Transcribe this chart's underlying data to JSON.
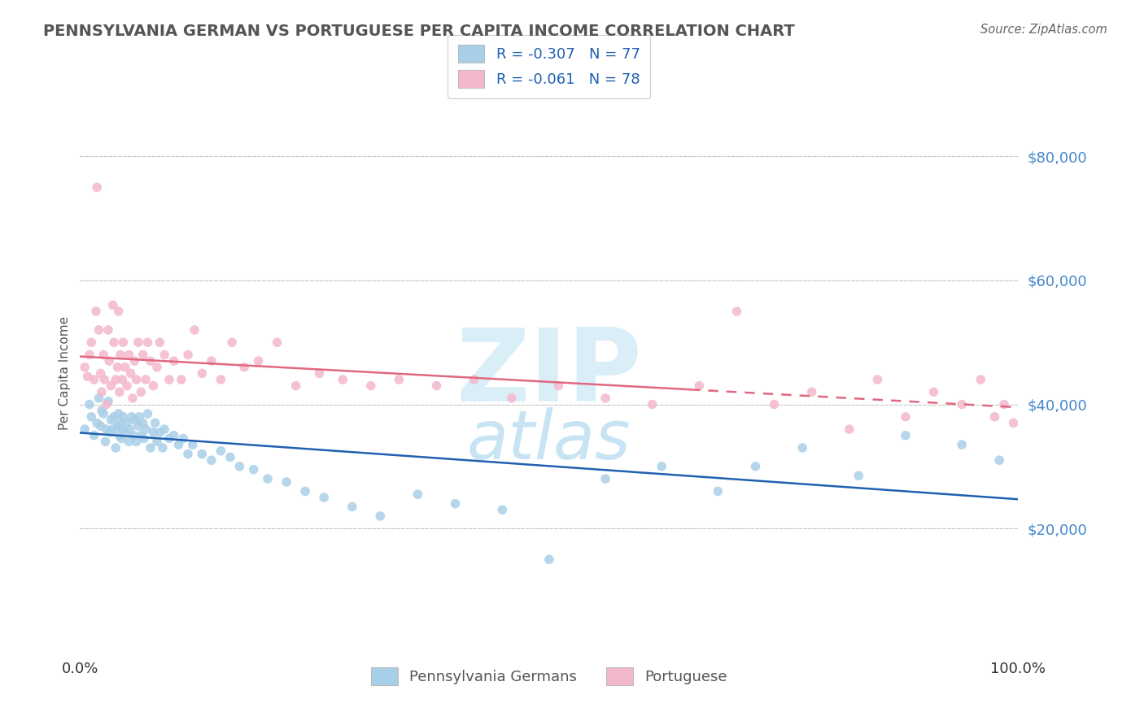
{
  "title": "PENNSYLVANIA GERMAN VS PORTUGUESE PER CAPITA INCOME CORRELATION CHART",
  "source": "Source: ZipAtlas.com",
  "ylabel": "Per Capita Income",
  "yticks": [
    20000,
    40000,
    60000,
    80000
  ],
  "ytick_labels": [
    "$20,000",
    "$40,000",
    "$60,000",
    "$80,000"
  ],
  "ylim": [
    0,
    90000
  ],
  "xlim": [
    0.0,
    1.0
  ],
  "xtick_left": "0.0%",
  "xtick_right": "100.0%",
  "legend_entry1": "R = -0.307   N = 77",
  "legend_entry2": "R = -0.061   N = 78",
  "legend_label1": "Pennsylvania Germans",
  "legend_label2": "Portuguese",
  "color_pa": "#a8cfe8",
  "color_pt": "#f4b8cc",
  "color_pa_line": "#2060b0",
  "color_pt_line": "#e06880",
  "background_color": "#ffffff",
  "grid_color": "#c8c8c8",
  "title_color": "#555555",
  "source_color": "#666666",
  "tick_color_y": "#4488cc",
  "watermark_zip_color": "#daeef8",
  "watermark_atlas_color": "#c8e4f4",
  "pa_x": [
    0.005,
    0.01,
    0.012,
    0.015,
    0.018,
    0.02,
    0.022,
    0.023,
    0.025,
    0.027,
    0.028,
    0.03,
    0.032,
    0.033,
    0.035,
    0.036,
    0.038,
    0.04,
    0.041,
    0.042,
    0.043,
    0.044,
    0.045,
    0.046,
    0.048,
    0.05,
    0.052,
    0.053,
    0.055,
    0.057,
    0.058,
    0.06,
    0.062,
    0.063,
    0.065,
    0.067,
    0.068,
    0.07,
    0.072,
    0.075,
    0.078,
    0.08,
    0.082,
    0.085,
    0.088,
    0.09,
    0.095,
    0.1,
    0.105,
    0.11,
    0.115,
    0.12,
    0.13,
    0.14,
    0.15,
    0.16,
    0.17,
    0.185,
    0.2,
    0.22,
    0.24,
    0.26,
    0.29,
    0.32,
    0.36,
    0.4,
    0.45,
    0.5,
    0.56,
    0.62,
    0.68,
    0.72,
    0.77,
    0.83,
    0.88,
    0.94,
    0.98
  ],
  "pa_y": [
    36000,
    40000,
    38000,
    35000,
    37000,
    41000,
    36500,
    39000,
    38500,
    34000,
    36000,
    40500,
    35500,
    37500,
    36000,
    38000,
    33000,
    36500,
    38500,
    35000,
    37000,
    34500,
    36000,
    38000,
    35500,
    37000,
    34000,
    36000,
    38000,
    35000,
    37500,
    34000,
    36500,
    38000,
    35000,
    37000,
    34500,
    36000,
    38500,
    33000,
    35500,
    37000,
    34000,
    35500,
    33000,
    36000,
    34500,
    35000,
    33500,
    34500,
    32000,
    33500,
    32000,
    31000,
    32500,
    31500,
    30000,
    29500,
    28000,
    27500,
    26000,
    25000,
    23500,
    22000,
    25500,
    24000,
    23000,
    15000,
    28000,
    30000,
    26000,
    30000,
    33000,
    28500,
    35000,
    33500,
    31000
  ],
  "pt_x": [
    0.005,
    0.008,
    0.01,
    0.012,
    0.015,
    0.017,
    0.018,
    0.02,
    0.022,
    0.023,
    0.025,
    0.026,
    0.028,
    0.03,
    0.031,
    0.033,
    0.035,
    0.036,
    0.038,
    0.04,
    0.041,
    0.042,
    0.043,
    0.045,
    0.046,
    0.048,
    0.05,
    0.052,
    0.054,
    0.056,
    0.058,
    0.06,
    0.062,
    0.065,
    0.067,
    0.07,
    0.072,
    0.075,
    0.078,
    0.082,
    0.085,
    0.09,
    0.095,
    0.1,
    0.108,
    0.115,
    0.122,
    0.13,
    0.14,
    0.15,
    0.162,
    0.175,
    0.19,
    0.21,
    0.23,
    0.255,
    0.28,
    0.31,
    0.34,
    0.38,
    0.42,
    0.46,
    0.51,
    0.56,
    0.61,
    0.66,
    0.7,
    0.74,
    0.78,
    0.82,
    0.85,
    0.88,
    0.91,
    0.94,
    0.96,
    0.975,
    0.985,
    0.995
  ],
  "pt_y": [
    46000,
    44500,
    48000,
    50000,
    44000,
    55000,
    75000,
    52000,
    45000,
    42000,
    48000,
    44000,
    40000,
    52000,
    47000,
    43000,
    56000,
    50000,
    44000,
    46000,
    55000,
    42000,
    48000,
    44000,
    50000,
    46000,
    43000,
    48000,
    45000,
    41000,
    47000,
    44000,
    50000,
    42000,
    48000,
    44000,
    50000,
    47000,
    43000,
    46000,
    50000,
    48000,
    44000,
    47000,
    44000,
    48000,
    52000,
    45000,
    47000,
    44000,
    50000,
    46000,
    47000,
    50000,
    43000,
    45000,
    44000,
    43000,
    44000,
    43000,
    44000,
    41000,
    43000,
    41000,
    40000,
    43000,
    55000,
    40000,
    42000,
    36000,
    44000,
    38000,
    42000,
    40000,
    44000,
    38000,
    40000,
    37000
  ]
}
